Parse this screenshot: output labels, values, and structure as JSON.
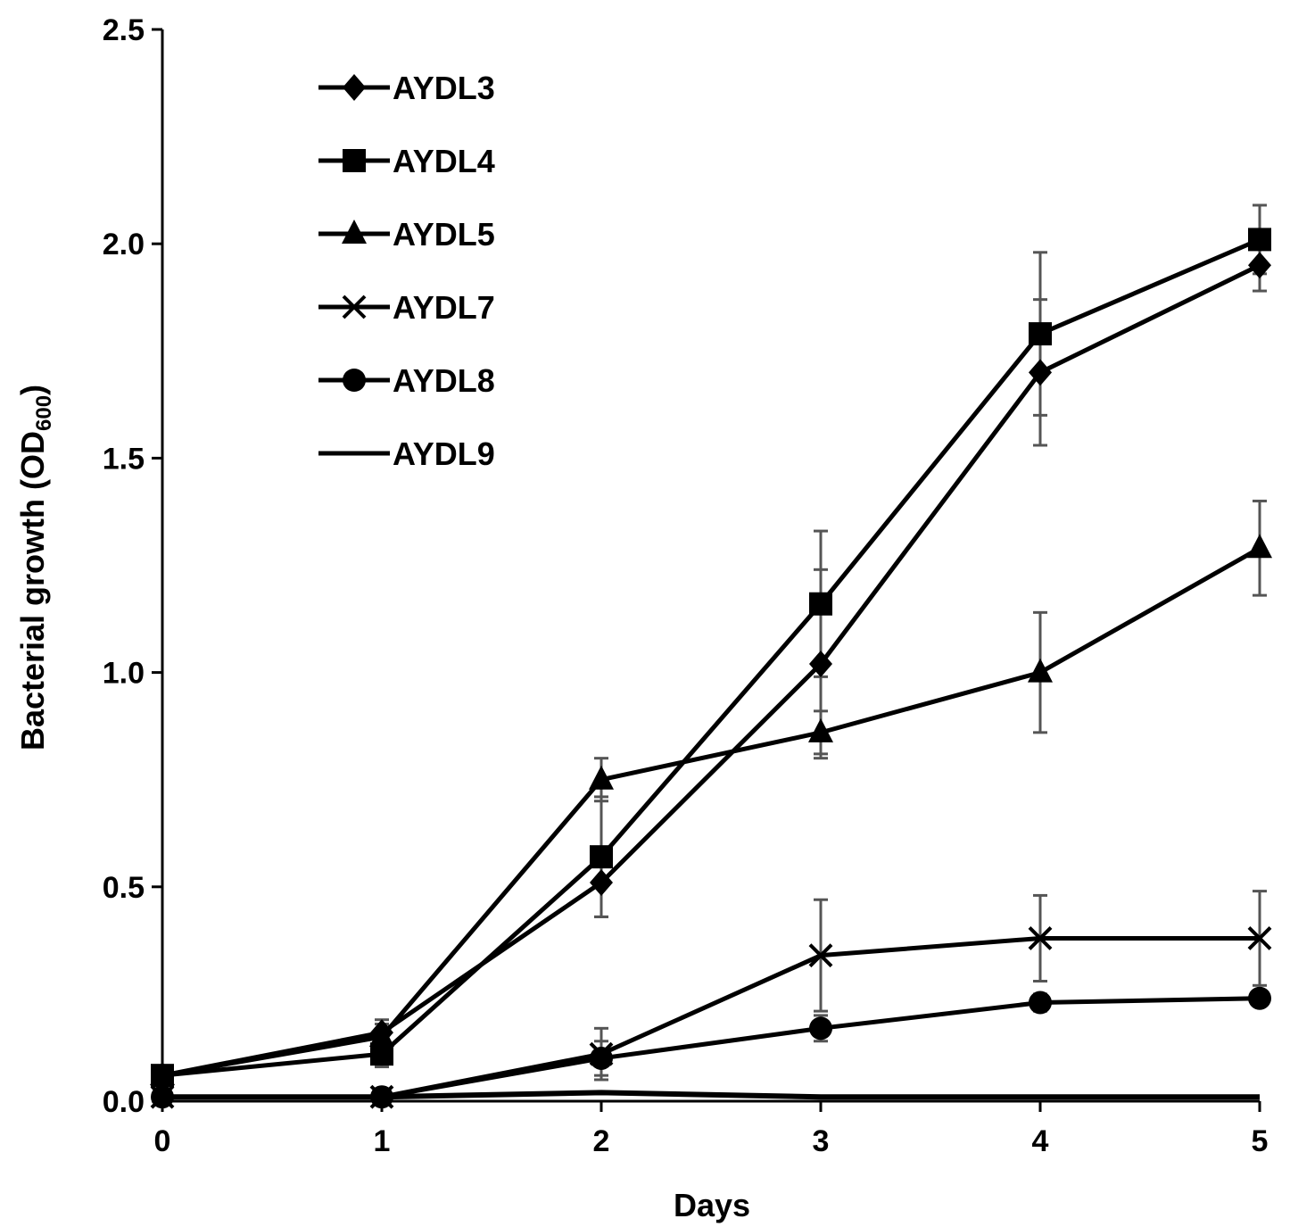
{
  "chart_data": {
    "type": "line",
    "xlabel": "Days",
    "ylabel_main": "Bacterial growth (OD",
    "ylabel_sub": "600",
    "ylabel_close": ")",
    "x": [
      0,
      1,
      2,
      3,
      4,
      5
    ],
    "x_tick_labels": [
      "0",
      "1",
      "2",
      "3",
      "4",
      "5"
    ],
    "xlim": [
      0,
      5
    ],
    "ylim": [
      0,
      2.5
    ],
    "y_ticks": [
      0,
      0.5,
      1.0,
      1.5,
      2.0,
      2.5
    ],
    "y_tick_labels": [
      "0.0",
      "0.5",
      "1.0",
      "1.5",
      "2.0",
      "2.5"
    ],
    "grid": false,
    "legend_position": "top-left",
    "line_color": "#000000",
    "error_bar_color": "#555555",
    "series": [
      {
        "name": "AYDL3",
        "marker": "diamond",
        "values": [
          0.06,
          0.16,
          0.51,
          1.02,
          1.7,
          1.95
        ],
        "error": [
          0.0,
          0.03,
          0.08,
          0.22,
          0.17,
          0.06
        ]
      },
      {
        "name": "AYDL4",
        "marker": "square",
        "values": [
          0.06,
          0.11,
          0.57,
          1.16,
          1.79,
          2.01
        ],
        "error": [
          0.0,
          0.03,
          0.14,
          0.17,
          0.19,
          0.08
        ]
      },
      {
        "name": "AYDL5",
        "marker": "triangle",
        "values": [
          0.06,
          0.15,
          0.75,
          0.86,
          1.0,
          1.29
        ],
        "error": [
          0.0,
          0.03,
          0.05,
          0.05,
          0.14,
          0.11
        ]
      },
      {
        "name": "AYDL7",
        "marker": "x",
        "values": [
          0.01,
          0.01,
          0.11,
          0.34,
          0.38,
          0.38
        ],
        "error": [
          0.0,
          0.0,
          0.06,
          0.13,
          0.1,
          0.11
        ]
      },
      {
        "name": "AYDL8",
        "marker": "circle",
        "values": [
          0.01,
          0.01,
          0.1,
          0.17,
          0.23,
          0.24
        ],
        "error": [
          0.0,
          0.0,
          0.04,
          0.03,
          0.02,
          0.01
        ]
      },
      {
        "name": "AYDL9",
        "marker": "none",
        "values": [
          0.01,
          0.01,
          0.02,
          0.01,
          0.01,
          0.01
        ],
        "error": [
          0.0,
          0.0,
          0.0,
          0.0,
          0.0,
          0.0
        ]
      }
    ]
  }
}
